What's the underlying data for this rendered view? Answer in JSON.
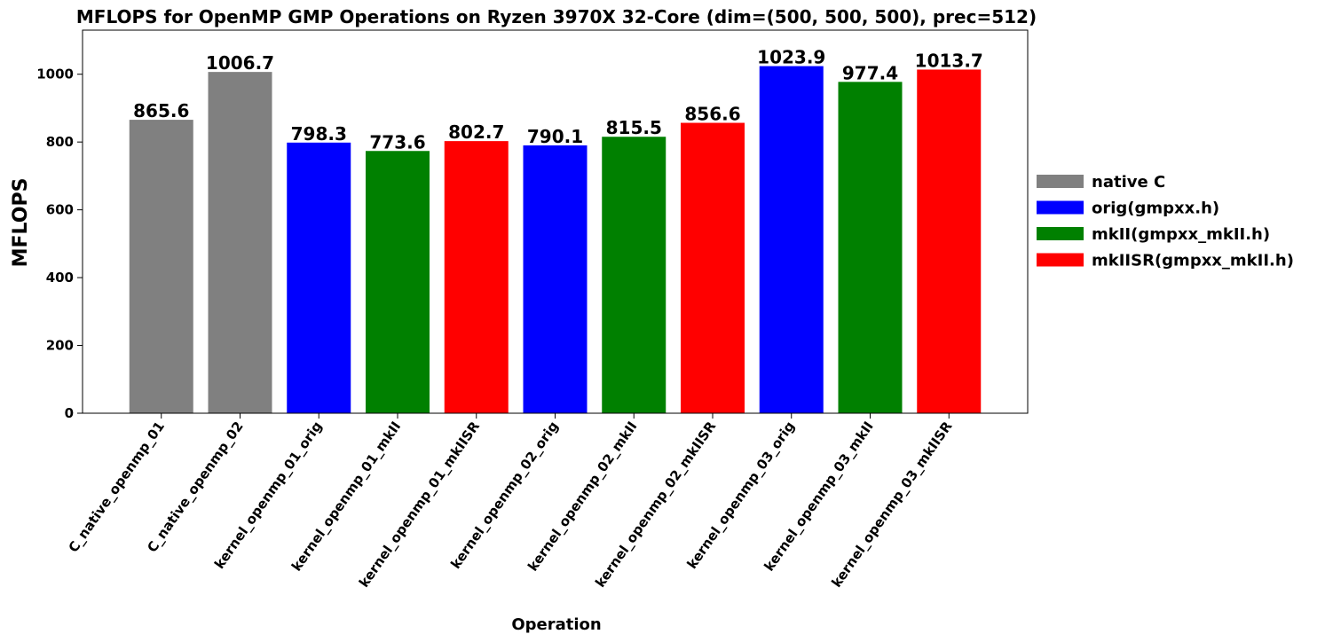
{
  "chart_data": {
    "type": "bar",
    "title": "MFLOPS for OpenMP GMP Operations on Ryzen 3970X 32-Core (dim=(500, 500, 500), prec=512)",
    "xlabel": "Operation",
    "ylabel": "MFLOPS",
    "ylim": [
      0,
      1130
    ],
    "yticks": [
      0,
      200,
      400,
      600,
      800,
      1000
    ],
    "categories": [
      "C_native_openmp_01",
      "C_native_openmp_02",
      "kernel_openmp_01_orig",
      "kernel_openmp_01_mkII",
      "kernel_openmp_01_mkIISR",
      "kernel_openmp_02_orig",
      "kernel_openmp_02_mkII",
      "kernel_openmp_02_mkIISR",
      "kernel_openmp_03_orig",
      "kernel_openmp_03_mkII",
      "kernel_openmp_03_mkIISR"
    ],
    "values": [
      865.6,
      1006.7,
      798.3,
      773.6,
      802.7,
      790.1,
      815.5,
      856.6,
      1023.9,
      977.4,
      1013.7
    ],
    "value_labels": [
      "865.6",
      "1006.7",
      "798.3",
      "773.6",
      "802.7",
      "790.1",
      "815.5",
      "856.6",
      "1023.9",
      "977.4",
      "1013.7"
    ],
    "groups": [
      0,
      0,
      1,
      2,
      3,
      1,
      2,
      3,
      1,
      2,
      3
    ],
    "legend": [
      {
        "label": "native C",
        "color": "#808080"
      },
      {
        "label": "orig(gmpxx.h)",
        "color": "#0000ff"
      },
      {
        "label": "mkII(gmpxx_mkII.h)",
        "color": "#008000"
      },
      {
        "label": "mkIISR(gmpxx_mkII.h)",
        "color": "#ff0000"
      }
    ],
    "legend_position": "outside-right",
    "grid": false
  }
}
